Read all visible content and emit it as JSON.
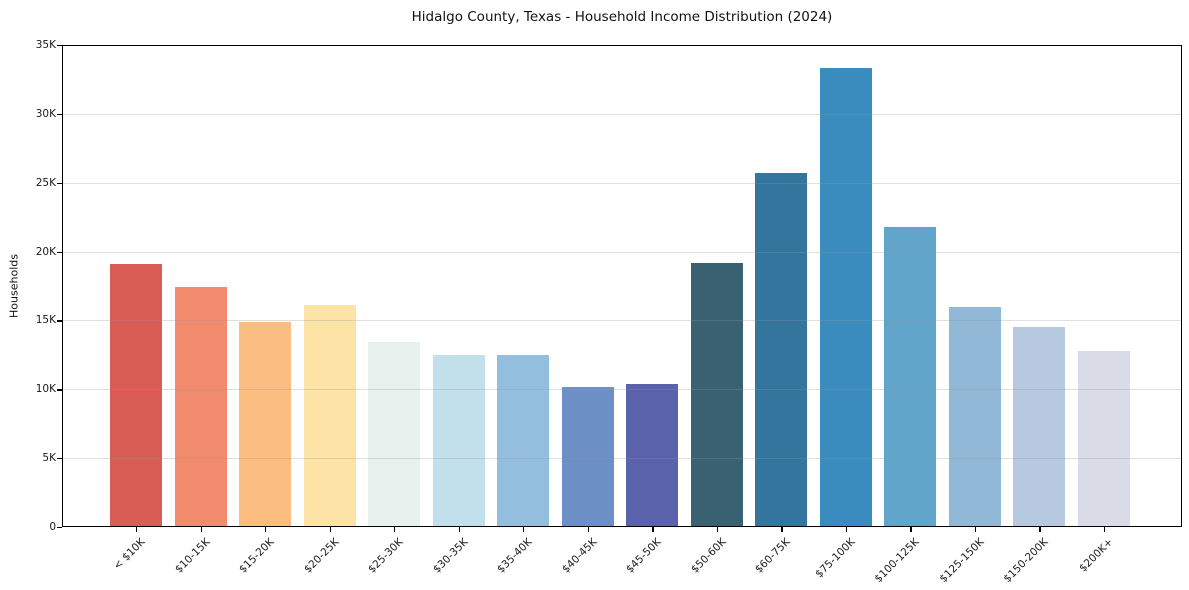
{
  "chart_data": {
    "type": "bar",
    "title": "Hidalgo County, Texas - Household Income Distribution (2024)",
    "xlabel": "",
    "ylabel": "Households",
    "ylim": [
      0,
      35000
    ],
    "yticks": [
      0,
      5000,
      10000,
      15000,
      20000,
      25000,
      30000,
      35000
    ],
    "ytick_labels": [
      "0",
      "5K",
      "10K",
      "15K",
      "20K",
      "25K",
      "30K",
      "35K"
    ],
    "grid": "horizontal",
    "legend": "none",
    "categories": [
      "< $10K",
      "$10-15K",
      "$15-20K",
      "$20-25K",
      "$25-30K",
      "$30-35K",
      "$35-40K",
      "$40-45K",
      "$45-50K",
      "$50-60K",
      "$60-75K",
      "$75-100K",
      "$100-125K",
      "$125-150K",
      "$150-200K",
      "$200K+"
    ],
    "values": [
      19100,
      17400,
      14900,
      16100,
      13400,
      12500,
      12500,
      10200,
      10400,
      19200,
      25700,
      33300,
      21800,
      16000,
      14500,
      12800
    ],
    "bar_colors": [
      "#d95d55",
      "#f28b6e",
      "#fbbd80",
      "#fde3a6",
      "#e7f2ee",
      "#c2e0eb",
      "#93bedd",
      "#6c90c5",
      "#5a62ab",
      "#396172",
      "#34759d",
      "#3a8cbf",
      "#61a5cb",
      "#92b8d7",
      "#b7c9e0",
      "#d9dbe7"
    ]
  },
  "colors": {
    "background": "#ffffff",
    "spine": "#000000",
    "gridline": "#e9e9ec",
    "text": "#1a1a1a"
  }
}
